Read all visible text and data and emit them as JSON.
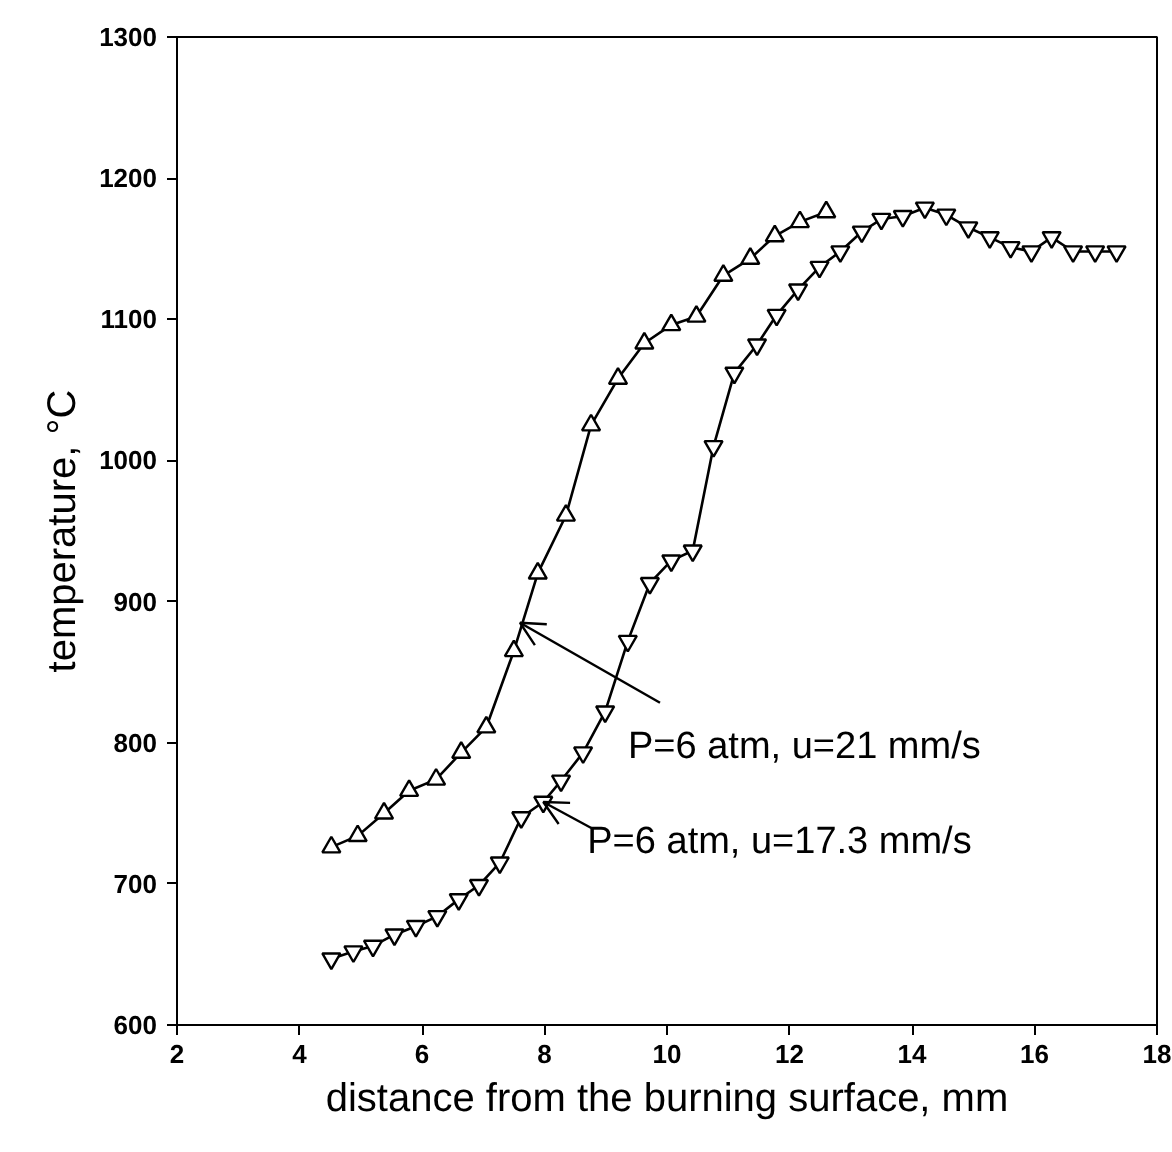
{
  "chart_data": {
    "type": "line",
    "xlabel": "distance from the burning surface, mm",
    "ylabel": "temperature, °C",
    "xlim": [
      2,
      18
    ],
    "xticks": [
      2,
      4,
      6,
      8,
      10,
      12,
      14,
      16,
      18
    ],
    "ylim": [
      600,
      1300
    ],
    "yticks": [
      600,
      700,
      800,
      900,
      1000,
      1100,
      1200,
      1300
    ],
    "grid": false,
    "line_style": "solid",
    "series": [
      {
        "color": "#000000",
        "marker": "triangle",
        "x": [
          4.52,
          4.95,
          5.38,
          5.79,
          6.23,
          6.64,
          7.05,
          7.5,
          7.89,
          8.35,
          8.76,
          9.2,
          9.63,
          10.07,
          10.48,
          10.92,
          11.36,
          11.76,
          12.17,
          12.6
        ],
        "values": [
          726,
          734,
          750,
          766,
          774,
          793,
          811,
          865,
          920,
          961,
          1025,
          1058,
          1083,
          1096,
          1102,
          1131,
          1143,
          1159,
          1169,
          1176
        ]
      },
      {
        "color": "#000000",
        "marker": "triangle",
        "x": [
          4.52,
          4.88,
          5.2,
          5.55,
          5.9,
          6.25,
          6.6,
          6.93,
          7.27,
          7.62,
          7.98,
          8.27,
          8.63,
          8.99,
          9.36,
          9.72,
          10.07,
          10.42,
          10.76,
          11.1,
          11.47,
          11.79,
          12.14,
          12.49,
          12.83,
          13.18,
          13.5,
          13.85,
          14.21,
          14.56,
          14.92,
          15.27,
          15.61,
          15.95,
          16.28,
          16.63,
          16.99,
          17.34
        ],
        "values": [
          647,
          652,
          656,
          664,
          670,
          677,
          689,
          699,
          715,
          747,
          758,
          773,
          793,
          822,
          872,
          913,
          929,
          936,
          1010,
          1062,
          1082,
          1103,
          1121,
          1137,
          1148,
          1162,
          1171,
          1173,
          1179,
          1174,
          1165,
          1158,
          1151,
          1148,
          1158,
          1148,
          1148,
          1148
        ]
      }
    ],
    "annotations": [
      {
        "text": "P=6 atm, u=21 mm/s",
        "x": 7.6,
        "y": 885
      },
      {
        "text": "P=6 atm, u=17.3 mm/s",
        "x": 7.98,
        "y": 758
      }
    ]
  }
}
